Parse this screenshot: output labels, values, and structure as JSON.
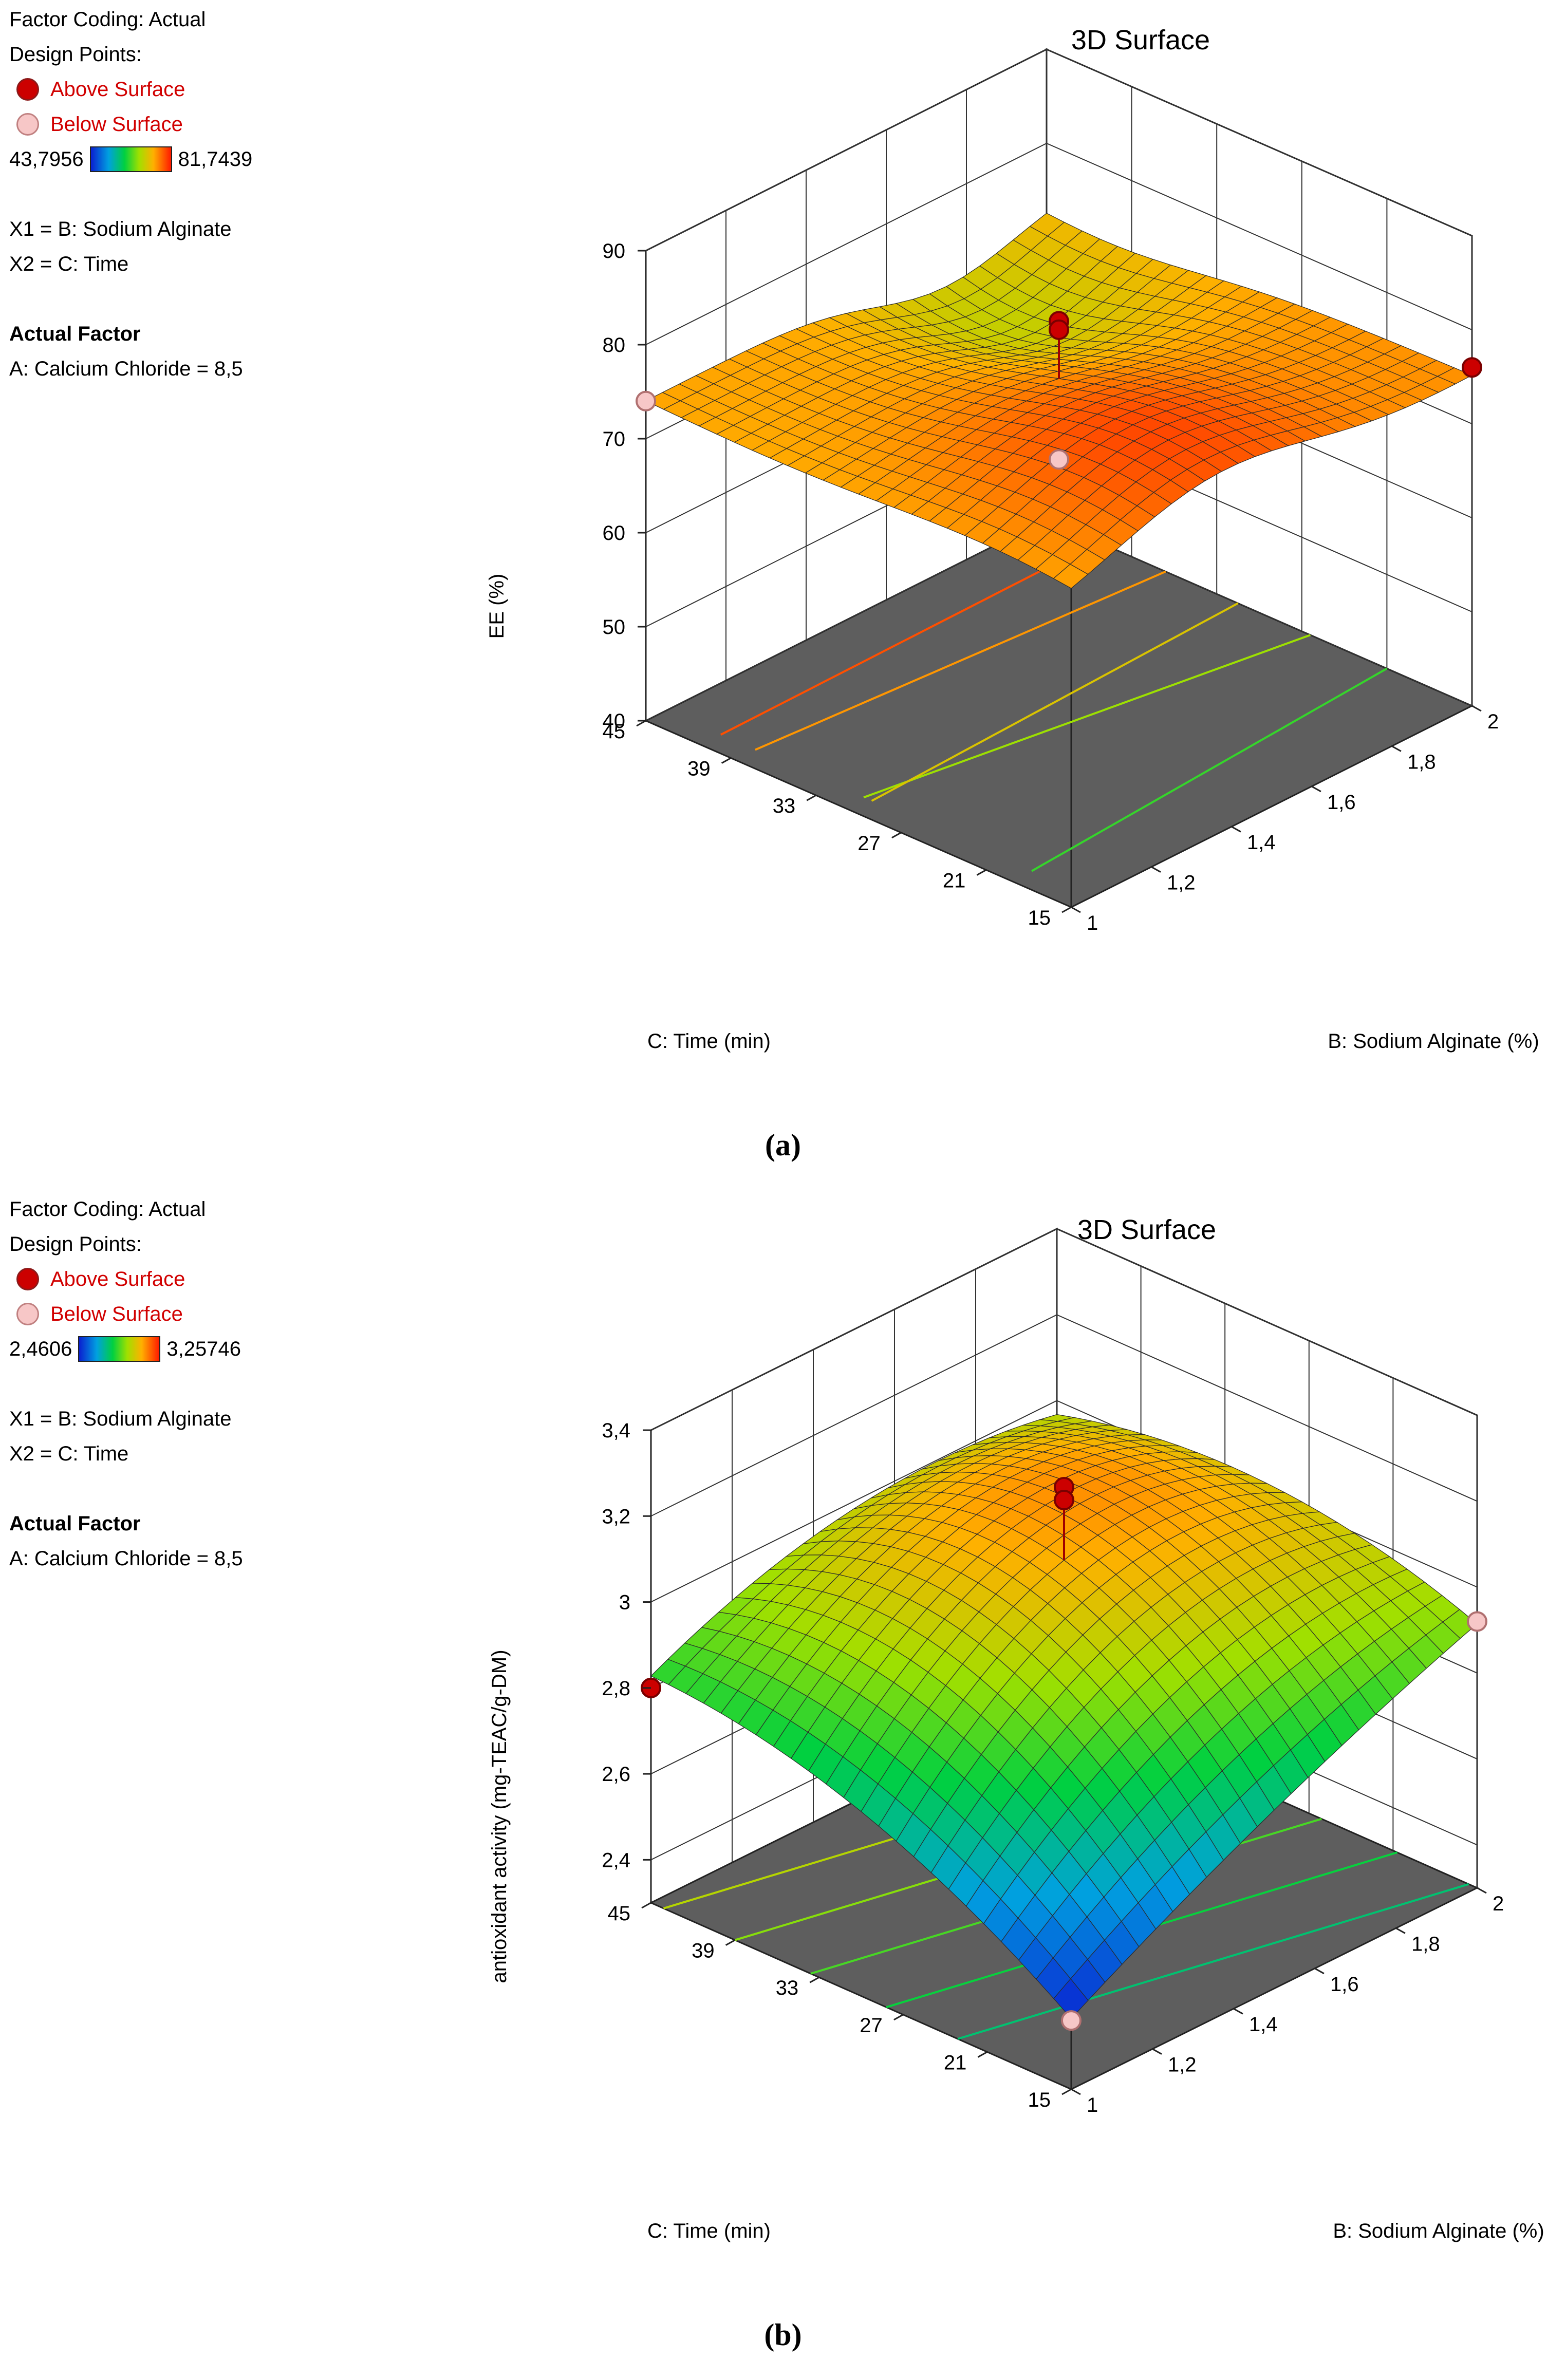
{
  "panels": [
    {
      "caption": "(a)",
      "legend": {
        "factor_coding": "Factor Coding: Actual",
        "design_points": "Design Points:",
        "above": "Above Surface",
        "below": "Below Surface",
        "range_min": "43,7956",
        "range_max": "81,7439",
        "x1": "X1 = B: Sodium Alginate",
        "x2": "X2 = C: Time",
        "actual_factor": "Actual Factor",
        "factor_value": "A: Calcium Chloride = 8,5"
      }
    },
    {
      "caption": "(b)",
      "legend": {
        "factor_coding": "Factor Coding: Actual",
        "design_points": "Design Points:",
        "above": "Above Surface",
        "below": "Below Surface",
        "range_min": "2,4606",
        "range_max": "3,25746",
        "x1": "X1 = B: Sodium Alginate",
        "x2": "X2 = C: Time",
        "actual_factor": "Actual Factor",
        "factor_value": "A: Calcium Chloride = 8,5"
      }
    }
  ],
  "chart_data": [
    {
      "type": "surface3d",
      "title": "3D Surface",
      "zlabel": "EE (%)",
      "xlabel": "B: Sodium Alginate (%)",
      "ylabel": "C: Time (min)",
      "x_ticks": [
        "1",
        "1,2",
        "1,4",
        "1,6",
        "1,8",
        "2"
      ],
      "y_ticks": [
        "15",
        "21",
        "27",
        "33",
        "39",
        "45"
      ],
      "z_ticks": [
        "40",
        "50",
        "60",
        "70",
        "80",
        "90"
      ],
      "xlim": [
        1,
        2
      ],
      "ylim": [
        15,
        45
      ],
      "zlim": [
        40,
        90
      ],
      "color_range": [
        43.7956,
        81.7439
      ],
      "surface_corners": {
        "B1_C15": 72,
        "B2_C15": 75,
        "B1_C45": 74,
        "B2_C45": 74
      },
      "design_points": [
        {
          "B": 1,
          "C": 45,
          "z": 74,
          "type": "below"
        },
        {
          "B": 2,
          "C": 15,
          "z": 76,
          "type": "above"
        },
        {
          "B": 1.5,
          "C": 30,
          "z": 81.7,
          "type": "above"
        },
        {
          "B": 1.5,
          "C": 30,
          "z": 80.8,
          "type": "above"
        },
        {
          "B": 1.5,
          "C": 30,
          "z": 67,
          "type": "below"
        }
      ]
    },
    {
      "type": "surface3d",
      "title": "3D Surface",
      "zlabel": "antioxidant activity (mg-TEAC/g-DM)",
      "xlabel": "B: Sodium Alginate (%)",
      "ylabel": "C: Time (min)",
      "x_ticks": [
        "1",
        "1,2",
        "1,4",
        "1,6",
        "1,8",
        "2"
      ],
      "y_ticks": [
        "15",
        "21",
        "27",
        "33",
        "39",
        "45"
      ],
      "z_ticks": [
        "2,4",
        "2,6",
        "2,8",
        "3",
        "3,2",
        "3,4"
      ],
      "xlim": [
        1,
        2
      ],
      "ylim": [
        15,
        45
      ],
      "zlim": [
        2.3,
        3.4
      ],
      "color_range": [
        2.4606,
        3.25746
      ],
      "surface_corners": {
        "B1_C15": 2.45,
        "B2_C15": 2.9,
        "B1_C45": 2.78,
        "B2_C45": 2.92
      },
      "design_points": [
        {
          "B": 1,
          "C": 45,
          "z": 2.8,
          "type": "above"
        },
        {
          "B": 2,
          "C": 15,
          "z": 2.92,
          "type": "below"
        },
        {
          "B": 1,
          "C": 15,
          "z": 2.46,
          "type": "below"
        },
        {
          "B": 1.5,
          "C": 30,
          "z": 3.25,
          "type": "above"
        },
        {
          "B": 1.5,
          "C": 30,
          "z": 3.22,
          "type": "above"
        }
      ]
    }
  ]
}
